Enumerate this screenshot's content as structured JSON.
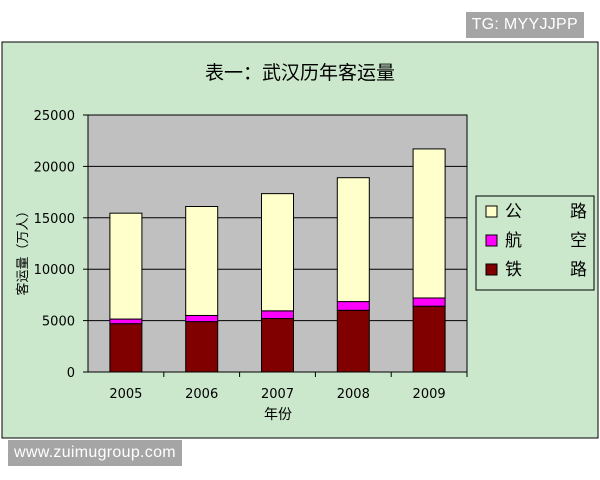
{
  "chart_data": {
    "type": "bar",
    "stacked": true,
    "title": "表一：武汉历年客运量",
    "xlabel": "年份",
    "ylabel": "客运量（万人）",
    "ylim": [
      0,
      25000
    ],
    "yticks": [
      0,
      5000,
      10000,
      15000,
      20000,
      25000
    ],
    "grid": true,
    "legend": "right",
    "categories": [
      "2005",
      "2006",
      "2007",
      "2008",
      "2009"
    ],
    "series": [
      {
        "name": "铁 路",
        "color": "#800000",
        "values": [
          4700,
          4900,
          5200,
          6000,
          6400
        ]
      },
      {
        "name": "航 空",
        "color": "#ff00ff",
        "values": [
          450,
          600,
          750,
          850,
          800
        ]
      },
      {
        "name": "公 路",
        "color": "#ffffcc",
        "values": [
          10300,
          10600,
          11400,
          12050,
          14500
        ]
      }
    ]
  },
  "colors": {
    "outer_background": "#cce8cc",
    "plot_background": "#c0c0c0",
    "axis": "#000000"
  },
  "watermarks": {
    "top": "TG: MYYJJPP",
    "bottom": "www.zuimugroup.com"
  }
}
